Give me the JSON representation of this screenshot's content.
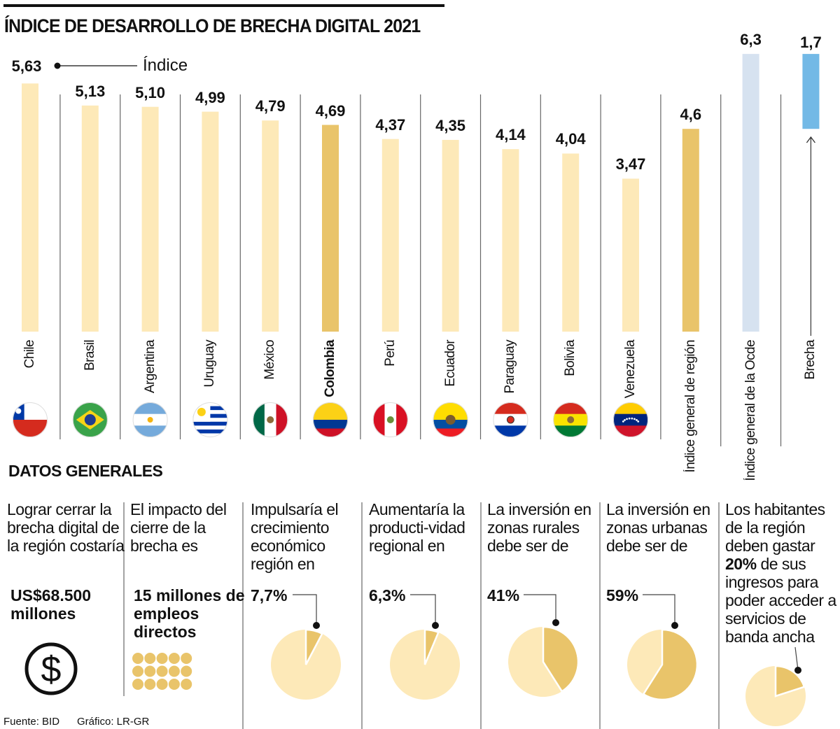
{
  "title": "ÍNDICE DE DESARROLLO DE BRECHA DIGITAL 2021",
  "legend_label": "Índice",
  "colors": {
    "bar": "#fde9b8",
    "highlight": "#e9c46a",
    "ocde": "#d6e2f0",
    "brecha": "#73b9e6",
    "text": "#111111"
  },
  "chart_data": {
    "type": "bar",
    "title": "ÍNDICE DE DESARROLLO DE BRECHA DIGITAL 2021",
    "categories": [
      "Chile",
      "Brasil",
      "Argentina",
      "Uruguay",
      "México",
      "Colombia",
      "Perú",
      "Ecuador",
      "Paraguay",
      "Bolivia",
      "Venezuela",
      "Índice general de región",
      "Índice general de la Ocde"
    ],
    "values": [
      5.63,
      5.13,
      5.1,
      4.99,
      4.79,
      4.69,
      4.37,
      4.35,
      4.14,
      4.04,
      3.47,
      4.6,
      6.3
    ],
    "value_labels": [
      "5,63",
      "5,13",
      "5,10",
      "4,99",
      "4,79",
      "4,69",
      "4,37",
      "4,35",
      "4,14",
      "4,04",
      "3,47",
      "4,6",
      "6,3"
    ],
    "highlighted": [
      "Colombia",
      "Índice general de región"
    ],
    "flags": [
      "chile-flag-icon",
      "brazil-flag-icon",
      "argentina-flag-icon",
      "uruguay-flag-icon",
      "mexico-flag-icon",
      "colombia-flag-icon",
      "peru-flag-icon",
      "ecuador-flag-icon",
      "paraguay-flag-icon",
      "bolivia-flag-icon",
      "venezuela-flag-icon"
    ],
    "brecha": {
      "label": "Brecha",
      "value": 1.7,
      "value_label": "1,7",
      "from": 4.6,
      "to": 6.3
    },
    "ylim": [
      0,
      6.3
    ],
    "grid": false
  },
  "datos": {
    "title": "DATOS GENERALES",
    "items": [
      {
        "text": "Lograr cerrar la brecha digital de la región costaría",
        "value": "US$68.500 millones",
        "icon": "dollar-icon"
      },
      {
        "text": "El impacto del cierre de la brecha es",
        "value": "15 millones de empleos directos",
        "icon": "dots-icon"
      },
      {
        "text": "Impulsaría el crecimiento económico región en",
        "value": "7,7%",
        "pct": 7.7
      },
      {
        "text": "Aumentaría la producti-vidad regional en",
        "value": "6,3%",
        "pct": 6.3
      },
      {
        "text": "La inversión en zonas rurales debe ser de",
        "value": "41%",
        "pct": 41
      },
      {
        "text": "La inversión en zonas urbanas debe ser de",
        "value": "59%",
        "pct": 59
      },
      {
        "text_pre": "Los habitantes de la región deben gastar",
        "value": "20%",
        "text_post": "de sus ingresos para poder acceder a servicios de banda ancha",
        "pct": 20
      }
    ]
  },
  "footer": {
    "source": "Fuente: BID",
    "credit": "Gráfico: LR-GR"
  }
}
